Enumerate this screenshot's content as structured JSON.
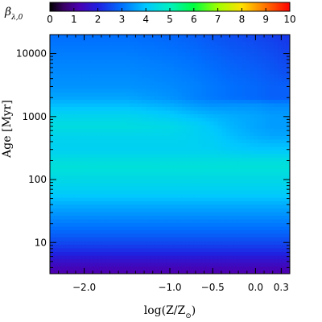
{
  "chart_data": {
    "type": "heatmap",
    "xlabel": "log(Z/Z",
    "xlabel_sub": "⊙",
    "xlabel_close": ")",
    "ylabel": "Age [Myr]",
    "y_scale": "log",
    "x_range": [
      -2.4,
      0.4
    ],
    "y_range": [
      3.2,
      20000
    ],
    "x_ticks": [
      -2.0,
      -1.0,
      -0.5,
      0.0,
      0.3
    ],
    "x_tick_labels": [
      "−2.0",
      "−1.0",
      "−0.5",
      "0.0",
      "0.3"
    ],
    "y_ticks": [
      10,
      100,
      1000,
      10000
    ],
    "y_tick_labels": [
      "10",
      "100",
      "1000",
      "10000"
    ],
    "colorbar": {
      "title": "β",
      "title_sub": "λ,0",
      "range": [
        0,
        10
      ],
      "ticks": [
        0,
        1,
        2,
        3,
        4,
        5,
        6,
        7,
        8,
        9,
        10
      ],
      "tick_labels": [
        "0",
        "1",
        "2",
        "3",
        "4",
        "5",
        "6",
        "7",
        "8",
        "9",
        "10"
      ],
      "colormap": "rainbow: black → violet → blue → cyan → green → yellow → orange → red"
    },
    "values_note": "beta value versus age (rows) and log metallicity (cols); approximate",
    "ages_myr": [
      3.5,
      5,
      7,
      10,
      15,
      25,
      40,
      60,
      100,
      150,
      200,
      300,
      500,
      700,
      1000,
      1500,
      2000,
      3000,
      5000,
      8000,
      12000,
      18000
    ],
    "log_z": [
      -2.3,
      -2.0,
      -1.5,
      -1.0,
      -0.7,
      -0.5,
      -0.3,
      0.0,
      0.2,
      0.35
    ],
    "beta": [
      [
        1.2,
        1.2,
        1.2,
        1.2,
        1.2,
        1.2,
        1.2,
        1.2,
        1.2,
        1.2
      ],
      [
        1.6,
        1.6,
        1.6,
        1.6,
        1.6,
        1.6,
        1.6,
        1.6,
        1.6,
        1.6
      ],
      [
        2.1,
        2.1,
        2.1,
        2.1,
        2.1,
        2.1,
        2.1,
        2.1,
        2.1,
        2.1
      ],
      [
        2.5,
        2.5,
        2.5,
        2.5,
        2.5,
        2.5,
        2.5,
        2.5,
        2.5,
        2.5
      ],
      [
        2.9,
        2.9,
        2.9,
        2.9,
        2.9,
        2.9,
        2.9,
        2.9,
        2.9,
        2.9
      ],
      [
        3.3,
        3.3,
        3.3,
        3.3,
        3.3,
        3.3,
        3.3,
        3.3,
        3.3,
        3.3
      ],
      [
        3.7,
        3.7,
        3.7,
        3.7,
        3.7,
        3.7,
        3.7,
        3.7,
        3.7,
        3.7
      ],
      [
        4.1,
        4.1,
        4.1,
        4.1,
        4.1,
        4.1,
        4.1,
        4.1,
        4.1,
        4.1
      ],
      [
        4.4,
        4.4,
        4.4,
        4.4,
        4.4,
        4.4,
        4.4,
        4.4,
        4.4,
        4.4
      ],
      [
        4.6,
        4.6,
        4.6,
        4.6,
        4.6,
        4.6,
        4.6,
        4.6,
        4.6,
        4.6
      ],
      [
        4.5,
        4.5,
        4.5,
        4.5,
        4.5,
        4.5,
        4.5,
        4.5,
        4.5,
        4.5
      ],
      [
        4.2,
        4.2,
        4.2,
        4.2,
        4.2,
        4.2,
        4.1,
        4.0,
        4.0,
        4.0
      ],
      [
        4.3,
        4.3,
        4.3,
        4.3,
        4.2,
        4.1,
        3.9,
        3.7,
        3.6,
        3.6
      ],
      [
        4.5,
        4.5,
        4.5,
        4.4,
        4.2,
        4.0,
        3.8,
        3.6,
        3.5,
        3.5
      ],
      [
        4.3,
        4.3,
        4.3,
        4.1,
        3.9,
        3.8,
        3.7,
        3.6,
        3.5,
        3.5
      ],
      [
        3.9,
        3.9,
        3.9,
        3.7,
        3.5,
        3.4,
        3.4,
        3.4,
        3.3,
        3.3
      ],
      [
        3.6,
        3.6,
        3.6,
        3.4,
        3.2,
        3.1,
        3.0,
        2.9,
        2.8,
        2.8
      ],
      [
        3.4,
        3.4,
        3.4,
        3.3,
        3.2,
        3.1,
        3.0,
        2.9,
        2.8,
        2.8
      ],
      [
        3.3,
        3.3,
        3.3,
        3.2,
        3.1,
        3.0,
        2.9,
        2.8,
        2.7,
        2.6
      ],
      [
        3.2,
        3.2,
        3.2,
        3.1,
        3.0,
        2.9,
        2.8,
        2.7,
        2.6,
        2.5
      ],
      [
        3.1,
        3.1,
        3.1,
        3.0,
        2.9,
        2.8,
        2.7,
        2.6,
        2.5,
        2.4
      ],
      [
        3.0,
        3.0,
        3.0,
        2.9,
        2.8,
        2.7,
        2.6,
        2.5,
        2.4,
        2.3
      ]
    ]
  }
}
